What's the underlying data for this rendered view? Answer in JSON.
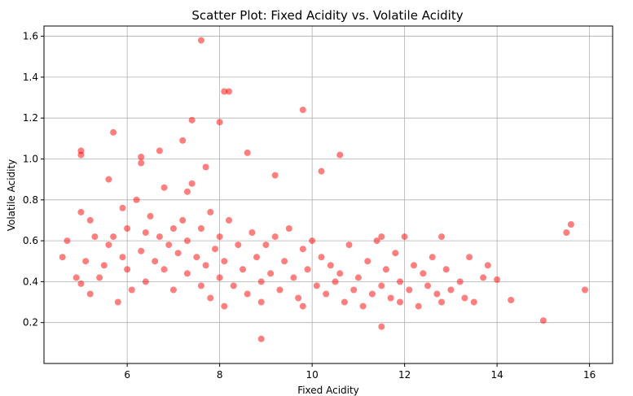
{
  "chart_data": {
    "type": "scatter",
    "title": "Scatter Plot: Fixed Acidity vs. Volatile Acidity",
    "xlabel": "Fixed Acidity",
    "ylabel": "Volatile Acidity",
    "xlim": [
      4.2,
      16.5
    ],
    "ylim": [
      0.0,
      1.65
    ],
    "xticks": [
      6,
      8,
      10,
      12,
      14,
      16
    ],
    "yticks": [
      0.2,
      0.4,
      0.6,
      0.8,
      1.0,
      1.2,
      1.4,
      1.6
    ],
    "grid": true,
    "marker_color": "#ff0000",
    "marker_alpha": 0.5,
    "series": [
      {
        "x": [
          4.6,
          4.7,
          4.9,
          5.0,
          5.0,
          5.0,
          5.0,
          5.1,
          5.2,
          5.2,
          5.3,
          5.4,
          5.5,
          5.6,
          5.6,
          5.7,
          5.8,
          5.9,
          5.9,
          6.0,
          6.0,
          6.1,
          6.2,
          6.3,
          6.3,
          6.4,
          6.4,
          6.5,
          6.6,
          6.7,
          6.8,
          6.8,
          6.9,
          7.0,
          7.0,
          7.1,
          7.2,
          7.3,
          7.3,
          7.4,
          7.5,
          7.6,
          7.6,
          7.7,
          7.8,
          7.8,
          7.9,
          8.0,
          8.0,
          8.1,
          8.1,
          8.2,
          8.3,
          8.4,
          8.5,
          8.6,
          8.7,
          8.8,
          8.9,
          8.9,
          9.0,
          9.1,
          9.2,
          9.3,
          9.4,
          9.5,
          9.6,
          9.7,
          9.8,
          9.8,
          9.9,
          10.0,
          10.1,
          10.2,
          10.3,
          10.4,
          10.5,
          10.6,
          10.6,
          10.7,
          10.8,
          10.9,
          11.0,
          11.1,
          11.2,
          11.3,
          11.4,
          11.5,
          11.5,
          11.6,
          11.7,
          11.8,
          11.9,
          11.9,
          12.0,
          12.1,
          12.2,
          12.3,
          12.4,
          12.5,
          12.6,
          12.7,
          12.8,
          12.8,
          12.9,
          13.0,
          13.2,
          13.3,
          13.4,
          13.5,
          13.7,
          13.8,
          14.0,
          14.3,
          15.0,
          15.5,
          15.6,
          15.9,
          7.6,
          8.1,
          8.2,
          7.4,
          7.2,
          6.7,
          8.0,
          9.8,
          5.7,
          6.3,
          7.3,
          8.9,
          11.5,
          7.7,
          8.6,
          9.2,
          10.2
        ],
        "y": [
          0.52,
          0.6,
          0.42,
          0.39,
          0.74,
          1.02,
          1.04,
          0.5,
          0.34,
          0.7,
          0.62,
          0.42,
          0.48,
          0.9,
          0.58,
          0.62,
          0.3,
          0.52,
          0.76,
          0.46,
          0.66,
          0.36,
          0.8,
          0.55,
          0.98,
          0.64,
          0.4,
          0.72,
          0.5,
          0.62,
          0.46,
          0.86,
          0.58,
          0.66,
          0.36,
          0.54,
          0.7,
          0.44,
          0.6,
          0.88,
          0.52,
          0.38,
          0.66,
          0.48,
          0.74,
          0.32,
          0.56,
          0.42,
          0.62,
          0.5,
          0.28,
          0.7,
          0.38,
          0.58,
          0.46,
          0.34,
          0.64,
          0.52,
          0.4,
          0.3,
          0.58,
          0.44,
          0.62,
          0.36,
          0.5,
          0.66,
          0.42,
          0.32,
          0.56,
          0.28,
          0.46,
          0.6,
          0.38,
          0.52,
          0.34,
          0.48,
          0.4,
          0.44,
          1.02,
          0.3,
          0.58,
          0.36,
          0.42,
          0.28,
          0.5,
          0.34,
          0.6,
          0.38,
          0.18,
          0.46,
          0.32,
          0.54,
          0.4,
          0.3,
          0.62,
          0.36,
          0.48,
          0.28,
          0.44,
          0.38,
          0.52,
          0.34,
          0.3,
          0.62,
          0.46,
          0.36,
          0.4,
          0.32,
          0.52,
          0.3,
          0.42,
          0.48,
          0.41,
          0.31,
          0.21,
          0.64,
          0.68,
          0.36,
          1.58,
          1.33,
          1.33,
          1.19,
          1.09,
          1.04,
          1.18,
          1.24,
          1.13,
          1.01,
          0.84,
          0.12,
          0.62,
          0.96,
          1.03,
          0.92,
          0.94
        ]
      }
    ]
  }
}
